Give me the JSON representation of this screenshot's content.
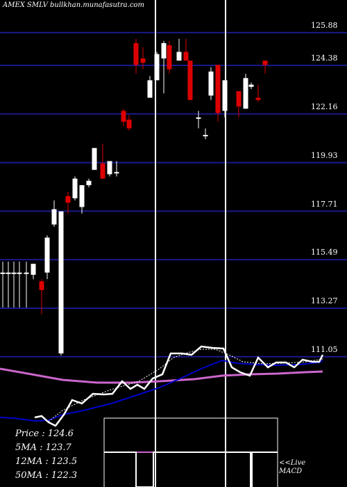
{
  "chart_data": {
    "type": "candlestick",
    "title": "AMEX SMLV bullkhan.munafasutra.com",
    "yticks": [
      "125.88",
      "124.38",
      "122.16",
      "119.93",
      "117.71",
      "115.49",
      "113.27",
      "111.05"
    ],
    "ytick_values": [
      125.88,
      124.38,
      122.16,
      119.93,
      117.71,
      115.49,
      113.27,
      111.05
    ],
    "ylim": [
      110.5,
      126.8
    ],
    "grid": true,
    "candles": [
      {
        "x": 4,
        "o": 114.9,
        "h": 115.4,
        "l": 113.3,
        "c": 114.9
      },
      {
        "x": 12,
        "o": 114.9,
        "h": 115.4,
        "l": 113.3,
        "c": 114.9
      },
      {
        "x": 20,
        "o": 114.9,
        "h": 115.4,
        "l": 113.3,
        "c": 114.9
      },
      {
        "x": 28,
        "o": 114.9,
        "h": 115.4,
        "l": 113.3,
        "c": 114.9
      },
      {
        "x": 38,
        "o": 114.9,
        "h": 115.4,
        "l": 113.3,
        "c": 114.9
      },
      {
        "x": 48,
        "o": 114.8,
        "h": 115.3,
        "l": 114.6,
        "c": 115.3
      },
      {
        "x": 60,
        "o": 114.5,
        "h": 114.6,
        "l": 113.0,
        "c": 114.1
      },
      {
        "x": 68,
        "o": 114.9,
        "h": 116.6,
        "l": 114.6,
        "c": 116.5
      },
      {
        "x": 78,
        "o": 117.1,
        "h": 118.2,
        "l": 117.0,
        "c": 117.8
      },
      {
        "x": 88,
        "o": 111.2,
        "h": 117.7,
        "l": 111.1,
        "c": 117.7
      },
      {
        "x": 98,
        "o": 118.4,
        "h": 118.6,
        "l": 117.6,
        "c": 118.1
      },
      {
        "x": 108,
        "o": 118.3,
        "h": 119.3,
        "l": 118.2,
        "c": 119.2
      },
      {
        "x": 118,
        "o": 117.9,
        "h": 118.9,
        "l": 117.6,
        "c": 118.9
      },
      {
        "x": 128,
        "o": 118.9,
        "h": 119.2,
        "l": 118.8,
        "c": 119.1
      },
      {
        "x": 136,
        "o": 119.6,
        "h": 120.6,
        "l": 119.6,
        "c": 120.6
      },
      {
        "x": 148,
        "o": 119.9,
        "h": 120.8,
        "l": 119.2,
        "c": 119.2
      },
      {
        "x": 158,
        "o": 119.4,
        "h": 120.0,
        "l": 119.3,
        "c": 120.0
      },
      {
        "x": 168,
        "o": 119.5,
        "h": 120.0,
        "l": 119.3,
        "c": 119.5
      },
      {
        "x": 178,
        "o": 122.3,
        "h": 122.4,
        "l": 121.6,
        "c": 121.8
      },
      {
        "x": 186,
        "o": 121.9,
        "h": 122.1,
        "l": 121.4,
        "c": 121.5
      },
      {
        "x": 196,
        "o": 125.4,
        "h": 125.6,
        "l": 124.0,
        "c": 124.4
      },
      {
        "x": 206,
        "o": 124.7,
        "h": 125.2,
        "l": 124.2,
        "c": 124.5
      },
      {
        "x": 216,
        "o": 122.9,
        "h": 123.9,
        "l": 122.9,
        "c": 123.7
      },
      {
        "x": 226,
        "o": 123.7,
        "h": 125.0,
        "l": 123.7,
        "c": 124.9
      },
      {
        "x": 236,
        "o": 124.7,
        "h": 125.5,
        "l": 123.1,
        "c": 125.4
      },
      {
        "x": 244,
        "o": 125.3,
        "h": 125.5,
        "l": 124.0,
        "c": 124.2
      },
      {
        "x": 258,
        "o": 124.6,
        "h": 125.6,
        "l": 124.6,
        "c": 125.0
      },
      {
        "x": 268,
        "o": 125.0,
        "h": 125.6,
        "l": 124.6,
        "c": 124.6
      },
      {
        "x": 274,
        "o": 124.6,
        "h": 124.6,
        "l": 122.8,
        "c": 122.8
      },
      {
        "x": 286,
        "o": 122.0,
        "h": 122.3,
        "l": 121.5,
        "c": 122.0
      },
      {
        "x": 296,
        "o": 121.2,
        "h": 121.5,
        "l": 121.0,
        "c": 121.2
      },
      {
        "x": 304,
        "o": 123.0,
        "h": 124.3,
        "l": 122.8,
        "c": 124.1
      },
      {
        "x": 314,
        "o": 124.4,
        "h": 124.4,
        "l": 121.8,
        "c": 122.2
      },
      {
        "x": 324,
        "o": 122.3,
        "h": 123.7,
        "l": 122.0,
        "c": 123.7
      },
      {
        "x": 344,
        "o": 123.2,
        "h": 123.2,
        "l": 122.0,
        "c": 122.5
      },
      {
        "x": 354,
        "o": 122.4,
        "h": 124.0,
        "l": 122.4,
        "c": 123.8
      },
      {
        "x": 362,
        "o": 123.4,
        "h": 123.6,
        "l": 123.3,
        "c": 123.5
      },
      {
        "x": 372,
        "o": 122.9,
        "h": 123.5,
        "l": 122.7,
        "c": 122.8
      },
      {
        "x": 382,
        "o": 124.6,
        "h": 124.6,
        "l": 124.0,
        "c": 124.4
      }
    ],
    "marker_lines_x": [
      224,
      325
    ]
  },
  "indicators": {
    "price": "Price   :  124.6",
    "ma5": "5MA : 123.7",
    "ma12": "12MA : 123.5",
    "ma50": "50MA : 122.3"
  },
  "macd_label": "<<Live\nMACD",
  "colors": {
    "grid": "#1a1a8a",
    "up": "#ffffff",
    "down": "#dd0000",
    "price_line": "#ffffff",
    "ma_blue": "#0000cc",
    "ma_magenta": "#cc66cc"
  }
}
